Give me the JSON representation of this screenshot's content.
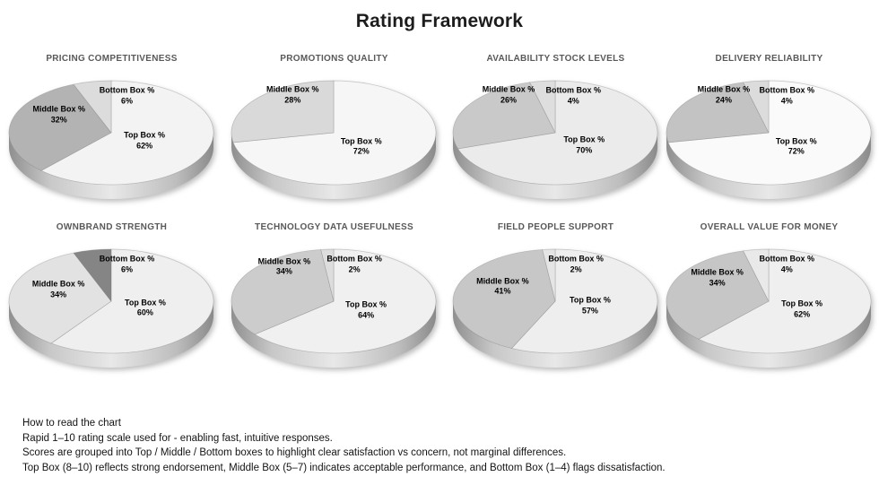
{
  "page": {
    "title": "Rating Framework",
    "footnote": {
      "lines": [
        "How to read the chart",
        "Rapid 1–10 rating scale used for - enabling fast, intuitive responses.",
        "Scores are grouped into Top / Middle / Bottom boxes to highlight clear satisfaction vs concern, not marginal differences.",
        "Top Box (8–10) reflects strong endorsement, Middle Box (5–7) indicates acceptable performance, and Bottom Box (1–4) flags dissatisfaction."
      ]
    }
  },
  "colors": {
    "main_title": "#1c1c1c",
    "chart_title": "#595959",
    "slice_label": "#000000",
    "pie_side_dark": "#8f8f8f",
    "pie_side_light": "#e8e8e8"
  },
  "chart_data": [
    {
      "type": "pie",
      "title": "PRICING COMPETITIVENESS",
      "legend_position": "none",
      "slices": [
        {
          "label": "Top Box %",
          "value": 62,
          "value_label": "62%",
          "color": "#f3f3f3"
        },
        {
          "label": "Middle Box %",
          "value": 32,
          "value_label": "32%",
          "color": "#b3b3b3"
        },
        {
          "label": "Bottom Box %",
          "value": 6,
          "value_label": "6%",
          "color": "#dcdcdc"
        }
      ]
    },
    {
      "type": "pie",
      "title": "PROMOTIONS QUALITY",
      "legend_position": "none",
      "slices": [
        {
          "label": "Top Box %",
          "value": 72,
          "value_label": "72%",
          "color": "#f6f6f6"
        },
        {
          "label": "Middle Box %",
          "value": 28,
          "value_label": "28%",
          "color": "#d9d9d9"
        }
      ]
    },
    {
      "type": "pie",
      "title": "AVAILABILITY STOCK LEVELS",
      "legend_position": "none",
      "slices": [
        {
          "label": "Top Box %",
          "value": 70,
          "value_label": "70%",
          "color": "#ebebeb"
        },
        {
          "label": "Middle Box %",
          "value": 26,
          "value_label": "26%",
          "color": "#c9c9c9"
        },
        {
          "label": "Bottom Box %",
          "value": 4,
          "value_label": "4%",
          "color": "#dedede"
        }
      ]
    },
    {
      "type": "pie",
      "title": "DELIVERY RELIABILITY",
      "legend_position": "none",
      "slices": [
        {
          "label": "Top Box %",
          "value": 72,
          "value_label": "72%",
          "color": "#fafafa"
        },
        {
          "label": "Middle Box %",
          "value": 24,
          "value_label": "24%",
          "color": "#c3c3c3"
        },
        {
          "label": "Bottom Box %",
          "value": 4,
          "value_label": "4%",
          "color": "#dcdcdc"
        }
      ]
    },
    {
      "type": "pie",
      "title": "OWNBRAND STRENGTH",
      "legend_position": "none",
      "slices": [
        {
          "label": "Top Box %",
          "value": 60,
          "value_label": "60%",
          "color": "#efefef"
        },
        {
          "label": "Middle Box %",
          "value": 34,
          "value_label": "34%",
          "color": "#e2e2e2"
        },
        {
          "label": "Bottom Box %",
          "value": 6,
          "value_label": "6%",
          "color": "#858585"
        }
      ]
    },
    {
      "type": "pie",
      "title": "TECHNOLOGY DATA USEFULNESS",
      "legend_position": "none",
      "slices": [
        {
          "label": "Top Box %",
          "value": 64,
          "value_label": "64%",
          "color": "#f0f0f0"
        },
        {
          "label": "Middle Box %",
          "value": 34,
          "value_label": "34%",
          "color": "#cccccc"
        },
        {
          "label": "Bottom Box %",
          "value": 2,
          "value_label": "2%",
          "color": "#dddddd"
        }
      ]
    },
    {
      "type": "pie",
      "title": "FIELD PEOPLE SUPPORT",
      "legend_position": "none",
      "slices": [
        {
          "label": "Top Box %",
          "value": 57,
          "value_label": "57%",
          "color": "#eeeeee"
        },
        {
          "label": "Middle Box %",
          "value": 41,
          "value_label": "41%",
          "color": "#c7c7c7"
        },
        {
          "label": "Bottom Box %",
          "value": 2,
          "value_label": "2%",
          "color": "#e5e5e5"
        }
      ]
    },
    {
      "type": "pie",
      "title": "OVERALL VALUE FOR MONEY",
      "legend_position": "none",
      "slices": [
        {
          "label": "Top Box %",
          "value": 62,
          "value_label": "62%",
          "color": "#efefef"
        },
        {
          "label": "Middle Box %",
          "value": 34,
          "value_label": "34%",
          "color": "#c6c6c6"
        },
        {
          "label": "Bottom Box %",
          "value": 4,
          "value_label": "4%",
          "color": "#e9e9e9"
        }
      ]
    }
  ]
}
